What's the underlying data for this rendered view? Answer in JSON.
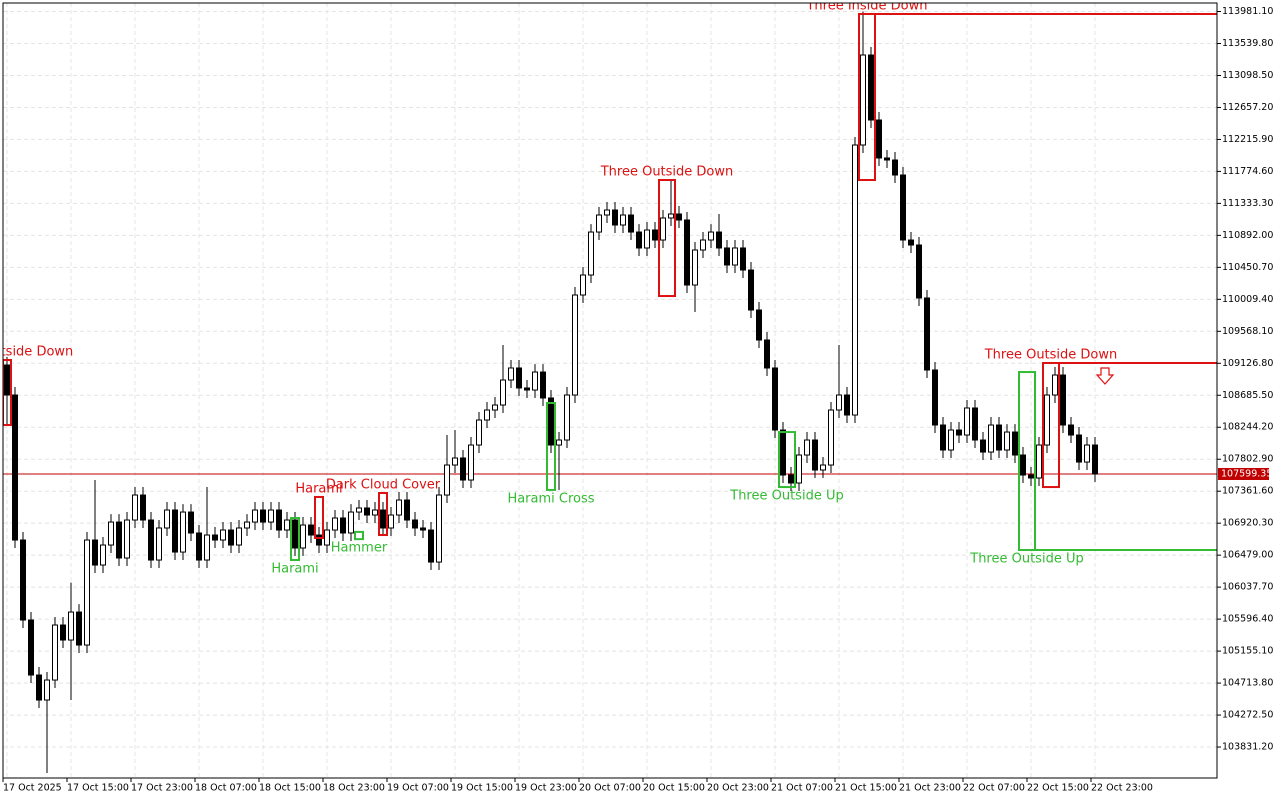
{
  "chart_data": {
    "type": "candlestick",
    "categories": [
      "17 Oct 2025",
      null,
      null,
      null,
      null,
      null,
      null,
      null,
      "17 Oct 15:00",
      null,
      null,
      null,
      null,
      null,
      null,
      null,
      "17 Oct 23:00",
      null,
      null,
      null,
      null,
      null,
      null,
      null,
      "18 Oct 07:00",
      null,
      null,
      null,
      null,
      null,
      null,
      null,
      "18 Oct 15:00",
      null,
      null,
      null,
      null,
      null,
      null,
      null,
      "18 Oct 23:00",
      null,
      null,
      null,
      null,
      null,
      null,
      null,
      "19 Oct 07:00",
      null,
      null,
      null,
      null,
      null,
      null,
      null,
      "19 Oct 15:00",
      null,
      null,
      null,
      null,
      null,
      null,
      null,
      "19 Oct 23:00",
      null,
      null,
      null,
      null,
      null,
      null,
      null,
      "20 Oct 07:00",
      null,
      null,
      null,
      null,
      null,
      null,
      null,
      "20 Oct 15:00",
      null,
      null,
      null,
      null,
      null,
      null,
      null,
      "20 Oct 23:00",
      null,
      null,
      null,
      null,
      null,
      null,
      null,
      "21 Oct 07:00",
      null,
      null,
      null,
      null,
      null,
      null,
      null,
      "21 Oct 15:00",
      null,
      null,
      null,
      null,
      null,
      null,
      null,
      "21 Oct 23:00",
      null,
      null,
      null,
      null,
      null,
      null,
      null,
      "22 Oct 07:00",
      null,
      null,
      null,
      null,
      null,
      null,
      null,
      "22 Oct 15:00",
      null,
      null,
      null,
      null,
      null,
      null,
      null,
      "22 Oct 23:00"
    ],
    "open": [
      109103,
      108689,
      106688,
      105584,
      104825,
      104480,
      104756,
      105515,
      105308,
      105694,
      105239,
      106688,
      106343,
      106619,
      106936,
      106440,
      106964,
      107309,
      106964,
      106412,
      106854,
      107102,
      106522,
      107074,
      106785,
      106412,
      106757,
      106688,
      106826,
      106619,
      106854,
      106936,
      107102,
      106936,
      107102,
      106826,
      106964,
      106578,
      106895,
      106757,
      106619,
      106826,
      106992,
      106785,
      107074,
      107130,
      107033,
      107102,
      106854,
      107033,
      107240,
      106964,
      106854,
      106826,
      106384,
      107309,
      107723,
      107820,
      107516,
      107999,
      108344,
      108482,
      108551,
      108896,
      109062,
      108786,
      108758,
      109006,
      108648,
      107999,
      108068,
      108689,
      110069,
      110345,
      110938,
      111173,
      111242,
      111035,
      111173,
      110938,
      110718,
      110966,
      110828,
      111132,
      111187,
      111104,
      110207,
      110690,
      110828,
      110938,
      110718,
      110483,
      110718,
      110414,
      109862,
      109448,
      109062,
      108206,
      107585,
      107475,
      107861,
      108068,
      107654,
      107723,
      108482,
      108689,
      108413,
      112139,
      113381,
      112484,
      111960,
      111932,
      111725,
      110828,
      110759,
      110028,
      109034,
      108275,
      107930,
      108206,
      108137,
      108510,
      108068,
      107902,
      108275,
      107930,
      108178,
      107861,
      107585,
      107544,
      107999,
      108689,
      108965,
      108275,
      108137,
      107764,
      107999
    ],
    "high": [
      109213,
      108799,
      106798,
      105694,
      104935,
      104866,
      105625,
      105625,
      106100,
      105804,
      106798,
      107516,
      106729,
      107046,
      107046,
      107074,
      107419,
      107419,
      107074,
      106964,
      107212,
      107212,
      107184,
      107184,
      106895,
      107419,
      106867,
      106936,
      106936,
      106964,
      107046,
      107212,
      107212,
      107212,
      107212,
      107074,
      107074,
      107005,
      107005,
      106867,
      106936,
      107102,
      107102,
      107184,
      107240,
      107240,
      107212,
      107212,
      107143,
      107350,
      107350,
      107074,
      106964,
      106936,
      107419,
      108137,
      108206,
      107930,
      108109,
      108454,
      108592,
      108661,
      109379,
      109172,
      109172,
      108896,
      109116,
      109116,
      108758,
      108178,
      108799,
      110179,
      110455,
      111048,
      111283,
      111352,
      111352,
      111283,
      111283,
      111048,
      111076,
      111076,
      111242,
      111656,
      111297,
      111214,
      110800,
      110938,
      111048,
      111187,
      110828,
      110828,
      110828,
      110524,
      109972,
      109558,
      109172,
      108316,
      107695,
      107971,
      108178,
      108178,
      107833,
      108592,
      109379,
      108799,
      112249,
      113981,
      113491,
      112594,
      112070,
      112042,
      111835,
      110938,
      110869,
      110138,
      109144,
      108385,
      108316,
      108316,
      108620,
      108620,
      108178,
      108385,
      108385,
      108288,
      108288,
      107971,
      107695,
      108109,
      108799,
      109075,
      109075,
      108385,
      108247,
      108109,
      108109
    ],
    "low": [
      108275,
      106578,
      105474,
      104715,
      104370,
      103473,
      104646,
      105198,
      104480,
      105129,
      105129,
      106233,
      106233,
      106509,
      106330,
      106330,
      106854,
      106854,
      106302,
      106302,
      106744,
      106412,
      106412,
      106675,
      106302,
      106302,
      106578,
      106578,
      106509,
      106509,
      106744,
      106826,
      106826,
      106826,
      106716,
      106716,
      106468,
      106468,
      106647,
      106509,
      106509,
      106716,
      106675,
      106675,
      106964,
      106923,
      106923,
      106744,
      106744,
      106923,
      106854,
      106744,
      106716,
      106274,
      106274,
      107199,
      107613,
      107406,
      107406,
      107889,
      108234,
      108372,
      108441,
      108786,
      108676,
      108648,
      108648,
      108538,
      107889,
      107379,
      107958,
      108579,
      109959,
      110235,
      110828,
      111063,
      110925,
      110925,
      110828,
      110608,
      110608,
      110718,
      110718,
      111022,
      110994,
      110097,
      109834,
      110580,
      110718,
      110608,
      110373,
      110373,
      110304,
      109752,
      109338,
      108952,
      108096,
      107475,
      107365,
      107365,
      107751,
      107544,
      107544,
      107613,
      108372,
      108303,
      108303,
      112029,
      112374,
      111850,
      111822,
      111615,
      110718,
      110649,
      109918,
      108924,
      108165,
      107820,
      107820,
      108027,
      108027,
      107958,
      107792,
      107792,
      107820,
      107820,
      107751,
      107475,
      107434,
      107434,
      107889,
      108579,
      108165,
      108027,
      107654,
      107654,
      107489
    ],
    "close": [
      108689,
      106688,
      105584,
      104825,
      104480,
      104756,
      105515,
      105308,
      105694,
      105239,
      106688,
      106343,
      106619,
      106936,
      106440,
      106964,
      107309,
      106964,
      106412,
      106854,
      107102,
      106522,
      107074,
      106785,
      106412,
      106757,
      106688,
      106826,
      106619,
      106854,
      106936,
      107102,
      106936,
      107102,
      106826,
      106964,
      106578,
      106895,
      106757,
      106619,
      106826,
      106992,
      106785,
      107074,
      107130,
      107033,
      107102,
      106854,
      107033,
      107240,
      106964,
      106854,
      106826,
      106384,
      107309,
      107723,
      107820,
      107516,
      107999,
      108344,
      108482,
      108551,
      108896,
      109062,
      108786,
      108758,
      109006,
      108648,
      107999,
      108068,
      108689,
      110069,
      110345,
      110938,
      111173,
      111242,
      111035,
      111173,
      110938,
      110718,
      110966,
      110828,
      111132,
      111187,
      111104,
      110207,
      110690,
      110828,
      110938,
      110718,
      110483,
      110718,
      110414,
      109862,
      109448,
      109062,
      108206,
      107585,
      107475,
      107861,
      108068,
      107654,
      107723,
      108482,
      108689,
      108413,
      112139,
      113381,
      112484,
      111960,
      111932,
      111725,
      110828,
      110759,
      110028,
      109034,
      108275,
      107930,
      108206,
      108137,
      108510,
      108068,
      107902,
      108275,
      107930,
      108178,
      107861,
      107585,
      107544,
      107999,
      108689,
      108965,
      108275,
      108137,
      107764,
      107999,
      107599.35
    ],
    "up_color": "#ffffff",
    "down_color": "#000000",
    "ylim": [
      103404,
      114140
    ],
    "yticks": [
      {
        "value": 113981.1,
        "label": "113981.10"
      },
      {
        "value": 113539.8,
        "label": "113539.80"
      },
      {
        "value": 113098.5,
        "label": "113098.50"
      },
      {
        "value": 112657.2,
        "label": "112657.20"
      },
      {
        "value": 112215.9,
        "label": "112215.90"
      },
      {
        "value": 111774.6,
        "label": "111774.60"
      },
      {
        "value": 111333.3,
        "label": "111333.30"
      },
      {
        "value": 110892,
        "label": "110892.00"
      },
      {
        "value": 110450.7,
        "label": "110450.70"
      },
      {
        "value": 110009.4,
        "label": "110009.40"
      },
      {
        "value": 109568.1,
        "label": "109568.10"
      },
      {
        "value": 109126.8,
        "label": "109126.80"
      },
      {
        "value": 108685.5,
        "label": "108685.50"
      },
      {
        "value": 108244.2,
        "label": "108244.20"
      },
      {
        "value": 107802.9,
        "label": "107802.90"
      },
      {
        "value": 107361.6,
        "label": "107361.60"
      },
      {
        "value": 106920.3,
        "label": "106920.30"
      },
      {
        "value": 106479,
        "label": "106479.00"
      },
      {
        "value": 106037.7,
        "label": "106037.70"
      },
      {
        "value": 105596.4,
        "label": "105596.40"
      },
      {
        "value": 105155.1,
        "label": "105155.10"
      },
      {
        "value": 104713.8,
        "label": "104713.80"
      },
      {
        "value": 104272.5,
        "label": "104272.50"
      },
      {
        "value": 103831.2,
        "label": "103831.20"
      }
    ],
    "grid": true,
    "last_price": {
      "value": 107599.35,
      "label": "107599.35",
      "color": "#c00000"
    },
    "patterns": [
      {
        "text": "Three Outside Down",
        "color": "#dd1111",
        "start": 0,
        "end": 0,
        "high": 109172,
        "low": 108275,
        "position": "above"
      },
      {
        "text": "Harami",
        "color": "#33bb33",
        "start": 36,
        "end": 36,
        "high": 106992,
        "low": 106412,
        "position": "below"
      },
      {
        "text": "Harami",
        "color": "#dd1111",
        "start": 39,
        "end": 39,
        "high": 107282,
        "low": 106716,
        "position": "above"
      },
      {
        "text": "Hammer",
        "color": "#33bb33",
        "start": 44,
        "end": 44,
        "high": 106800,
        "low": 106700,
        "position": "below"
      },
      {
        "text": "Dark Cloud Cover",
        "color": "#dd1111",
        "start": 47,
        "end": 47,
        "high": 107337,
        "low": 106757,
        "position": "above"
      },
      {
        "text": "Harami Cross",
        "color": "#33bb33",
        "start": 68,
        "end": 68,
        "high": 108579,
        "low": 107379,
        "position": "below"
      },
      {
        "text": "Three Outside Down",
        "color": "#dd1111",
        "start": 82,
        "end": 83,
        "high": 111656,
        "low": 110055,
        "position": "above"
      },
      {
        "text": "Three Outside Up",
        "color": "#33bb33",
        "start": 97,
        "end": 98,
        "high": 108178,
        "low": 107419,
        "position": "below"
      },
      {
        "text": "Three Inside Down",
        "color": "#dd1111",
        "start": 107,
        "end": 108,
        "high": 113947,
        "low": 111656,
        "position": "above",
        "extend": true
      },
      {
        "text": "Three Outside Up",
        "color": "#33bb33",
        "start": 127,
        "end": 128,
        "high": 109006,
        "low": 106550,
        "position": "below",
        "extend": true
      },
      {
        "text": "Three Outside Down",
        "color": "#dd1111",
        "start": 130,
        "end": 131,
        "high": 109131,
        "low": 107419,
        "position": "above",
        "extend": true
      }
    ]
  }
}
